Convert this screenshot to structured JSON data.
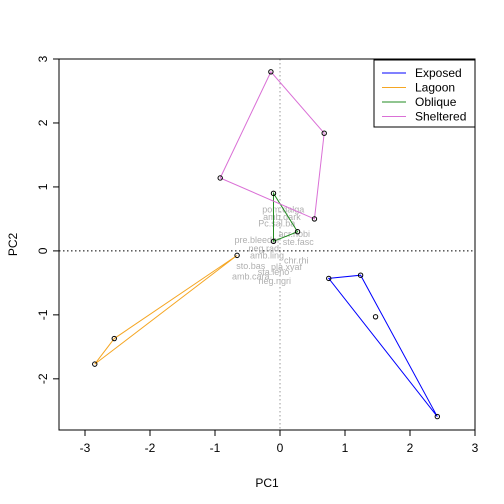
{
  "chart_data": {
    "type": "scatter",
    "title": "",
    "xlabel": "PC1",
    "ylabel": "PC2",
    "xlim": [
      -3.4,
      3.0
    ],
    "ylim": [
      -2.8,
      3.0
    ],
    "x_ticks": [
      -3,
      -2,
      -1,
      0,
      1,
      2,
      3
    ],
    "y_ticks": [
      -2,
      -1,
      0,
      1,
      2,
      3
    ],
    "reference_lines": {
      "x": 0,
      "y": 0,
      "style": "dotted"
    },
    "legend": {
      "position": "top-right",
      "entries": [
        {
          "name": "Exposed",
          "color": "#0000ff"
        },
        {
          "name": "Lagoon",
          "color": "#f5a623"
        },
        {
          "name": "Oblique",
          "color": "#228b22"
        },
        {
          "name": "Sheltered",
          "color": "#da70d6"
        }
      ]
    },
    "series": [
      {
        "name": "Exposed",
        "color": "#0000ff",
        "points": [
          [
            0.75,
            -0.43
          ],
          [
            1.24,
            -0.38
          ],
          [
            1.47,
            -1.03
          ],
          [
            2.42,
            -2.59
          ]
        ],
        "hull": [
          [
            0.75,
            -0.43
          ],
          [
            1.24,
            -0.38
          ],
          [
            2.42,
            -2.59
          ]
        ]
      },
      {
        "name": "Lagoon",
        "color": "#f5a623",
        "points": [
          [
            -2.85,
            -1.77
          ],
          [
            -2.55,
            -1.37
          ],
          [
            -0.66,
            -0.07
          ]
        ],
        "hull": [
          [
            -2.85,
            -1.77
          ],
          [
            -2.55,
            -1.37
          ],
          [
            -0.66,
            -0.07
          ]
        ]
      },
      {
        "name": "Oblique",
        "color": "#228b22",
        "points": [
          [
            -0.1,
            0.9
          ],
          [
            -0.1,
            0.15
          ],
          [
            0.27,
            0.3
          ]
        ],
        "hull": [
          [
            -0.1,
            0.9
          ],
          [
            -0.1,
            0.15
          ],
          [
            0.27,
            0.3
          ]
        ]
      },
      {
        "name": "Sheltered",
        "color": "#da70d6",
        "points": [
          [
            -0.92,
            1.14
          ],
          [
            -0.14,
            2.8
          ],
          [
            0.68,
            1.84
          ],
          [
            0.53,
            0.5
          ]
        ],
        "hull": [
          [
            -0.92,
            1.14
          ],
          [
            -0.14,
            2.8
          ],
          [
            0.68,
            1.84
          ],
          [
            0.53,
            0.5
          ]
        ]
      }
    ],
    "variable_labels": [
      {
        "text": "pom.dalga",
        "x": 0.05,
        "y": 0.6
      },
      {
        "text": "amb.dark",
        "x": 0.03,
        "y": 0.48
      },
      {
        "text": "Pc.sal.ba",
        "x": -0.05,
        "y": 0.38
      },
      {
        "text": "acr.nobi",
        "x": 0.22,
        "y": 0.22
      },
      {
        "text": "pre.bleeder",
        "x": -0.35,
        "y": 0.12
      },
      {
        "text": "ste.fasc",
        "x": 0.28,
        "y": 0.09
      },
      {
        "text": "neg.rad",
        "x": -0.25,
        "y": -0.01
      },
      {
        "text": "amb.ling",
        "x": -0.2,
        "y": -0.12
      },
      {
        "text": "chr.rhi",
        "x": 0.25,
        "y": -0.2
      },
      {
        "text": "sto.bas",
        "x": -0.45,
        "y": -0.28
      },
      {
        "text": "pla.xyaf",
        "x": 0.1,
        "y": -0.3
      },
      {
        "text": "sta.leno",
        "x": -0.1,
        "y": -0.38
      },
      {
        "text": "amb.cara",
        "x": -0.45,
        "y": -0.45
      },
      {
        "text": "neg.ngri",
        "x": -0.08,
        "y": -0.52
      }
    ]
  }
}
